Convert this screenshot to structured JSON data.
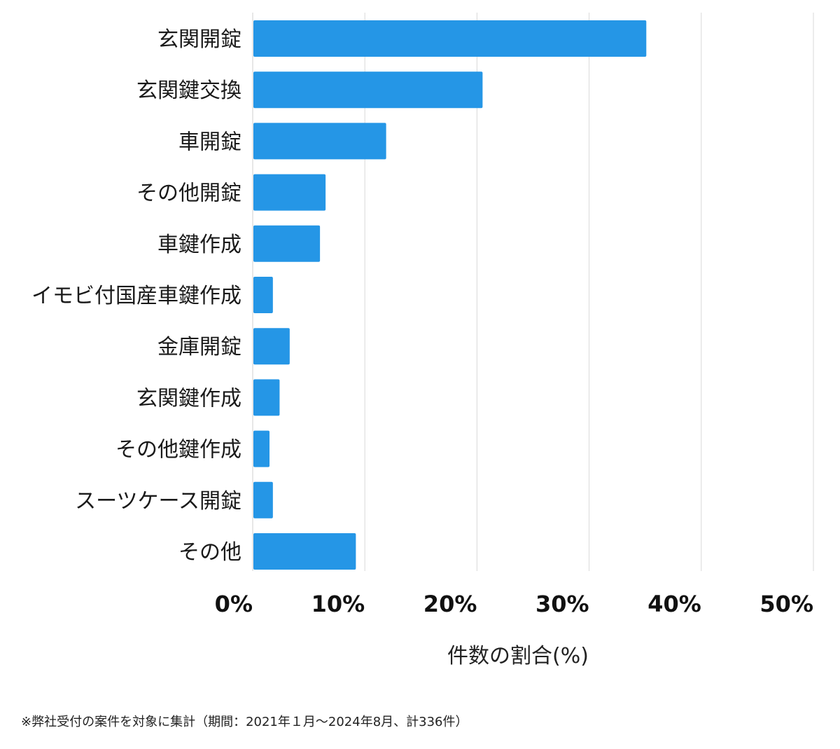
{
  "chart_data": {
    "type": "bar",
    "orientation": "horizontal",
    "categories": [
      "玄関開錠",
      "玄関鍵交換",
      "車開錠",
      "その他開錠",
      "車鍵作成",
      "イモビ付国産車鍵作成",
      "金庫開錠",
      "玄関鍵作成",
      "その他鍵作成",
      "スーツケース開錠",
      "その他"
    ],
    "values": [
      35.1,
      20.5,
      11.9,
      6.5,
      6.0,
      1.8,
      3.3,
      2.4,
      1.5,
      1.8,
      9.2
    ],
    "title": "",
    "xlabel": "件数の割合(%)",
    "ylabel": "",
    "xlim": [
      0,
      50
    ],
    "xticks": [
      "0%",
      "10%",
      "20%",
      "30%",
      "40%",
      "50%"
    ],
    "grid": "vertical",
    "legend": "none",
    "bar_color": "#2596e6",
    "grid_color": "#d9d9d9"
  },
  "footnote": "※弊社受付の案件を対象に集計（期間：2021年１月〜2024年8月、計336件）"
}
